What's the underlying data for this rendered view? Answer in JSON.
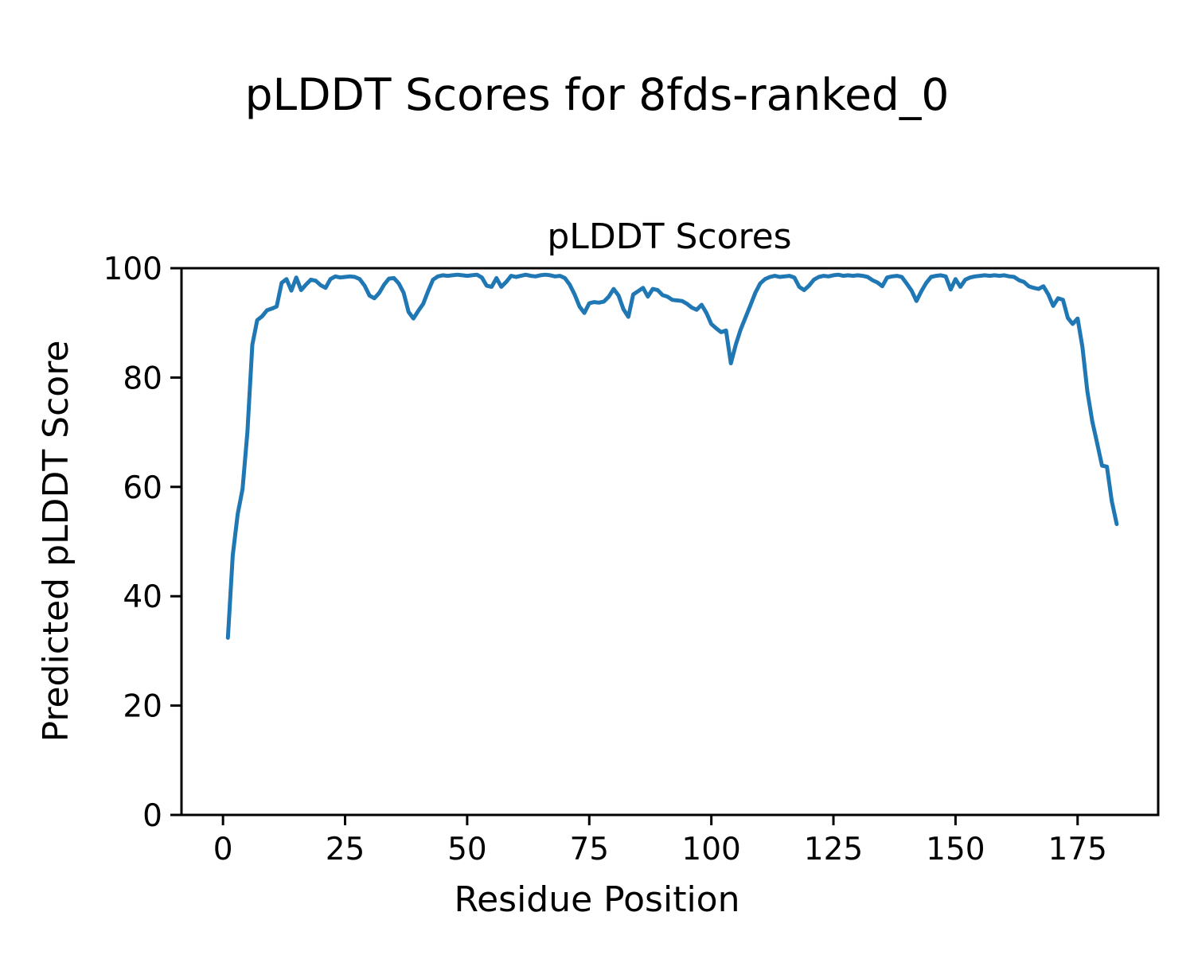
{
  "chart_data": {
    "type": "line",
    "figure_title": "pLDDT Scores for 8fds-ranked_0",
    "title": "pLDDT Scores",
    "xlabel": "Residue Position",
    "ylabel": "Predicted pLDDT Score",
    "line_color": "#1f77b4",
    "axis_color": "#000000",
    "background_color": "#ffffff",
    "legend": "none",
    "grid": false,
    "xlim": [
      -8.5,
      191.5
    ],
    "ylim": [
      0,
      100
    ],
    "x_ticks": [
      0,
      25,
      50,
      75,
      100,
      125,
      150,
      175
    ],
    "y_ticks": [
      0,
      20,
      40,
      60,
      80,
      100
    ],
    "x_start_residue": 1,
    "values": [
      32.4,
      47.5,
      55.0,
      59.6,
      70.0,
      86.0,
      90.5,
      91.2,
      92.3,
      92.6,
      93.0,
      97.3,
      98.0,
      95.9,
      98.3,
      96.0,
      97.0,
      97.9,
      97.7,
      96.9,
      96.4,
      98.0,
      98.5,
      98.3,
      98.4,
      98.5,
      98.4,
      98.0,
      96.8,
      95.0,
      94.5,
      95.5,
      97.0,
      98.1,
      98.2,
      97.2,
      95.5,
      92.0,
      90.8,
      92.2,
      93.5,
      95.8,
      97.9,
      98.5,
      98.7,
      98.6,
      98.7,
      98.8,
      98.7,
      98.6,
      98.7,
      98.8,
      98.3,
      96.8,
      96.6,
      98.2,
      96.6,
      97.5,
      98.6,
      98.4,
      98.6,
      98.8,
      98.6,
      98.5,
      98.7,
      98.8,
      98.7,
      98.5,
      98.6,
      98.2,
      97.0,
      95.2,
      93.0,
      91.8,
      93.6,
      93.8,
      93.7,
      93.9,
      94.8,
      96.2,
      95.0,
      92.5,
      91.1,
      95.2,
      95.8,
      96.4,
      94.8,
      96.2,
      96.0,
      95.1,
      94.8,
      94.2,
      94.1,
      94.0,
      93.5,
      92.8,
      92.4,
      93.3,
      91.8,
      89.8,
      89.0,
      88.3,
      88.6,
      82.6,
      86.0,
      88.8,
      91.0,
      93.2,
      95.5,
      97.2,
      98.0,
      98.4,
      98.6,
      98.4,
      98.5,
      98.6,
      98.3,
      96.6,
      96.0,
      96.8,
      97.9,
      98.4,
      98.6,
      98.5,
      98.7,
      98.8,
      98.6,
      98.7,
      98.6,
      98.7,
      98.6,
      98.4,
      97.8,
      97.4,
      96.7,
      98.3,
      98.5,
      98.6,
      98.4,
      97.2,
      95.9,
      94.0,
      95.8,
      97.3,
      98.4,
      98.6,
      98.7,
      98.5,
      96.1,
      98.0,
      96.6,
      97.9,
      98.3,
      98.5,
      98.6,
      98.7,
      98.6,
      98.7,
      98.6,
      98.7,
      98.5,
      98.4,
      97.8,
      97.5,
      96.7,
      96.4,
      96.2,
      96.7,
      95.2,
      93.1,
      94.5,
      94.2,
      90.9,
      89.8,
      90.8,
      85.5,
      77.5,
      72.0,
      68.0,
      63.9,
      63.7,
      57.4,
      53.2
    ]
  }
}
